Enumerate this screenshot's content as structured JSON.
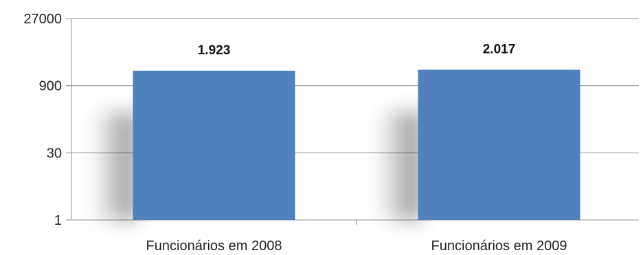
{
  "chart_data": {
    "type": "bar",
    "title": "",
    "xlabel": "",
    "ylabel": "",
    "yscale": "log",
    "ylim": [
      1,
      27000
    ],
    "yticks": [
      1,
      30,
      900,
      27000
    ],
    "ytick_labels": [
      "1",
      "30",
      "900",
      "27000"
    ],
    "grid": "horizontal",
    "legend": "none",
    "categories": [
      "Funcionários em 2008",
      "Funcionários em 2009"
    ],
    "values": [
      1923,
      2017
    ],
    "data_labels": [
      "1.923",
      "2.017"
    ],
    "bar_color": "#4f81bd",
    "gridline_color": "#8c8c8c"
  }
}
